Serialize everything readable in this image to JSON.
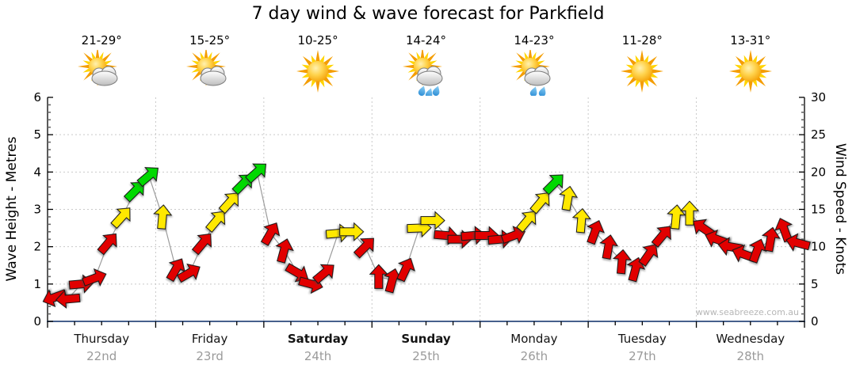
{
  "title": "7 day wind & wave forecast for Parkfield",
  "watermark": "www.seabreeze.com.au",
  "colors": {
    "arrow_red": "#e10000",
    "arrow_yellow": "#ffe800",
    "arrow_green": "#00d900",
    "axis_bottom": "#2b4a7b",
    "axis_side": "#000000",
    "grid": "#c9c9c9",
    "connector_gray": "#9b9b9b",
    "date_gray": "#9a9a9a",
    "watermark_gray": "#b6b6b6"
  },
  "axes": {
    "left": {
      "title": "Wave Height - Metres",
      "ticks": [
        "0",
        "1",
        "2",
        "3",
        "4",
        "5",
        "6"
      ],
      "range": [
        0,
        6
      ]
    },
    "right": {
      "title": "Wind Speed - Knots",
      "ticks": [
        "0",
        "5",
        "10",
        "15",
        "20",
        "25",
        "30"
      ],
      "range": [
        0,
        30
      ]
    }
  },
  "days": [
    {
      "name": "Thursday",
      "date": "22nd",
      "temp_range": "21-29°",
      "icon": "sun-cloud",
      "weekend": false
    },
    {
      "name": "Friday",
      "date": "23rd",
      "temp_range": "15-25°",
      "icon": "sun-cloud",
      "weekend": false
    },
    {
      "name": "Saturday",
      "date": "24th",
      "temp_range": "10-25°",
      "icon": "sun",
      "weekend": true
    },
    {
      "name": "Sunday",
      "date": "25th",
      "temp_range": "14-24°",
      "icon": "sun-cloud-rain",
      "weekend": true
    },
    {
      "name": "Monday",
      "date": "26th",
      "temp_range": "14-23°",
      "icon": "sun-cloud-drizzle",
      "weekend": false
    },
    {
      "name": "Tuesday",
      "date": "27th",
      "temp_range": "11-28°",
      "icon": "sun",
      "weekend": false
    },
    {
      "name": "Wednesday",
      "date": "28th",
      "temp_range": "13-31°",
      "icon": "sun",
      "weekend": false
    }
  ],
  "chart_data": {
    "type": "line",
    "subtype": "wind-direction-arrows",
    "title": "7 day wind & wave forecast for Parkfield",
    "x_axis": "7 days, 8 samples per day (3-hourly)",
    "y_left": {
      "label": "Wave Height - Metres",
      "range": [
        0,
        6
      ],
      "gridlines": [
        1,
        2,
        3,
        4,
        5
      ]
    },
    "y_right": {
      "label": "Wind Speed - Knots",
      "range": [
        0,
        30
      ],
      "gridlines": [
        5,
        10,
        15,
        20,
        25
      ]
    },
    "grid": true,
    "legend": "arrow color encodes wind strength: red light, yellow moderate, green fresh; arrow rotation = wind direction",
    "series_unit": "knots",
    "days": [
      {
        "day": "Thursday",
        "points": [
          {
            "knots": 3.2,
            "dir_deg": 250,
            "color": "red"
          },
          {
            "knots": 3.0,
            "dir_deg": 265,
            "color": "red"
          },
          {
            "knots": 5.0,
            "dir_deg": 85,
            "color": "red"
          },
          {
            "knots": 5.8,
            "dir_deg": 70,
            "color": "red"
          },
          {
            "knots": 10.5,
            "dir_deg": 40,
            "color": "red"
          },
          {
            "knots": 14.0,
            "dir_deg": 42,
            "color": "yellow"
          },
          {
            "knots": 17.5,
            "dir_deg": 45,
            "color": "green"
          },
          {
            "knots": 19.5,
            "dir_deg": 50,
            "color": "green"
          }
        ]
      },
      {
        "day": "Friday",
        "points": [
          {
            "knots": 14.0,
            "dir_deg": 5,
            "color": "yellow"
          },
          {
            "knots": 7.0,
            "dir_deg": 30,
            "color": "red"
          },
          {
            "knots": 6.5,
            "dir_deg": 60,
            "color": "red"
          },
          {
            "knots": 10.5,
            "dir_deg": 40,
            "color": "red"
          },
          {
            "knots": 13.5,
            "dir_deg": 40,
            "color": "yellow"
          },
          {
            "knots": 16.0,
            "dir_deg": 42,
            "color": "yellow"
          },
          {
            "knots": 18.5,
            "dir_deg": 45,
            "color": "green"
          },
          {
            "knots": 20.0,
            "dir_deg": 48,
            "color": "green"
          }
        ]
      },
      {
        "day": "Saturday",
        "points": [
          {
            "knots": 11.8,
            "dir_deg": 30,
            "color": "red"
          },
          {
            "knots": 9.5,
            "dir_deg": 15,
            "color": "red"
          },
          {
            "knots": 6.5,
            "dir_deg": 120,
            "color": "red"
          },
          {
            "knots": 5.0,
            "dir_deg": 105,
            "color": "red"
          },
          {
            "knots": 6.5,
            "dir_deg": 50,
            "color": "red"
          },
          {
            "knots": 11.8,
            "dir_deg": 85,
            "color": "yellow"
          },
          {
            "knots": 12.0,
            "dir_deg": 90,
            "color": "yellow"
          },
          {
            "knots": 10.0,
            "dir_deg": 45,
            "color": "red"
          }
        ]
      },
      {
        "day": "Sunday",
        "points": [
          {
            "knots": 6.0,
            "dir_deg": 0,
            "color": "red"
          },
          {
            "knots": 5.5,
            "dir_deg": 15,
            "color": "red"
          },
          {
            "knots": 7.0,
            "dir_deg": 25,
            "color": "red"
          },
          {
            "knots": 12.5,
            "dir_deg": 88,
            "color": "yellow"
          },
          {
            "knots": 13.5,
            "dir_deg": 90,
            "color": "yellow"
          },
          {
            "knots": 11.5,
            "dir_deg": 95,
            "color": "red"
          },
          {
            "knots": 11.0,
            "dir_deg": 90,
            "color": "red"
          },
          {
            "knots": 11.5,
            "dir_deg": 85,
            "color": "red"
          }
        ]
      },
      {
        "day": "Monday",
        "points": [
          {
            "knots": 11.5,
            "dir_deg": 90,
            "color": "red"
          },
          {
            "knots": 11.0,
            "dir_deg": 85,
            "color": "red"
          },
          {
            "knots": 11.5,
            "dir_deg": 70,
            "color": "red"
          },
          {
            "knots": 13.5,
            "dir_deg": 40,
            "color": "yellow"
          },
          {
            "knots": 16.0,
            "dir_deg": 40,
            "color": "yellow"
          },
          {
            "knots": 18.5,
            "dir_deg": 45,
            "color": "green"
          },
          {
            "knots": 16.5,
            "dir_deg": 10,
            "color": "yellow"
          },
          {
            "knots": 13.5,
            "dir_deg": 5,
            "color": "yellow"
          }
        ]
      },
      {
        "day": "Tuesday",
        "points": [
          {
            "knots": 12.0,
            "dir_deg": 20,
            "color": "red"
          },
          {
            "knots": 10.0,
            "dir_deg": 10,
            "color": "red"
          },
          {
            "knots": 8.0,
            "dir_deg": 5,
            "color": "red"
          },
          {
            "knots": 7.0,
            "dir_deg": 15,
            "color": "red"
          },
          {
            "knots": 9.0,
            "dir_deg": 35,
            "color": "red"
          },
          {
            "knots": 11.5,
            "dir_deg": 40,
            "color": "red"
          },
          {
            "knots": 14.0,
            "dir_deg": 5,
            "color": "yellow"
          },
          {
            "knots": 14.5,
            "dir_deg": 0,
            "color": "yellow"
          }
        ]
      },
      {
        "day": "Wednesday",
        "points": [
          {
            "knots": 12.5,
            "dir_deg": 305,
            "color": "red"
          },
          {
            "knots": 11.0,
            "dir_deg": 290,
            "color": "red"
          },
          {
            "knots": 10.0,
            "dir_deg": 280,
            "color": "red"
          },
          {
            "knots": 9.0,
            "dir_deg": 290,
            "color": "red"
          },
          {
            "knots": 9.5,
            "dir_deg": 20,
            "color": "red"
          },
          {
            "knots": 11.0,
            "dir_deg": 10,
            "color": "red"
          },
          {
            "knots": 12.3,
            "dir_deg": 340,
            "color": "red"
          },
          {
            "knots": 10.5,
            "dir_deg": 285,
            "color": "red"
          }
        ]
      }
    ]
  }
}
